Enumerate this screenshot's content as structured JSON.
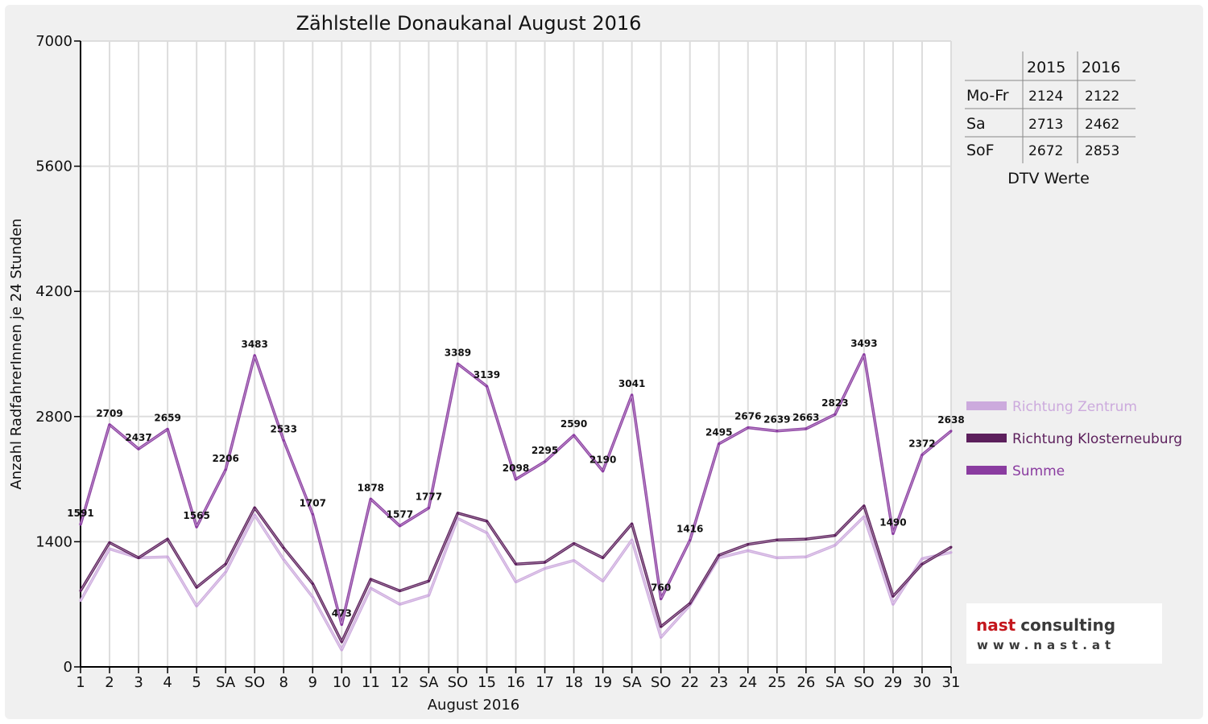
{
  "colors": {
    "zentrum": "#ccaadd",
    "kloster": "#5c1f5c",
    "summe": "#8a3ca0",
    "sunday": "#dd0000",
    "grid": "#dddddd"
  },
  "chart_data": {
    "type": "line",
    "title": "Zählstelle Donaukanal August 2016",
    "xlabel": "August 2016",
    "ylabel": "Anzahl RadfahrerInnen je 24 Stunden",
    "ylim": [
      0,
      7000
    ],
    "yticks": [
      "0",
      "1400",
      "2800",
      "4200",
      "5600",
      "7000"
    ],
    "ytick_values": [
      0,
      1400,
      2800,
      4200,
      5600,
      7000
    ],
    "categories": [
      "1",
      "2",
      "3",
      "4",
      "5",
      "SA",
      "SO",
      "8",
      "9",
      "10",
      "11",
      "12",
      "SA",
      "SO",
      "15",
      "16",
      "17",
      "18",
      "19",
      "SA",
      "SO",
      "22",
      "23",
      "24",
      "25",
      "26",
      "SA",
      "SO",
      "29",
      "30",
      "31"
    ],
    "red_categories": [
      6,
      13,
      14,
      20,
      27
    ],
    "grid": true,
    "legend_position": "right",
    "series": [
      {
        "name": "Richtung Zentrum",
        "color_key": "zentrum",
        "values": [
          740,
          1320,
          1220,
          1230,
          680,
          1060,
          1700,
          1200,
          780,
          190,
          880,
          700,
          800,
          1660,
          1500,
          950,
          1100,
          1190,
          960,
          1420,
          330,
          690,
          1220,
          1300,
          1220,
          1230,
          1360,
          1680,
          700,
          1210,
          1280
        ]
      },
      {
        "name": "Richtung Klosterneuburg",
        "color_key": "kloster",
        "values": [
          850,
          1390,
          1220,
          1430,
          890,
          1150,
          1780,
          1330,
          930,
          280,
          980,
          850,
          960,
          1720,
          1630,
          1150,
          1170,
          1380,
          1220,
          1600,
          450,
          710,
          1250,
          1370,
          1420,
          1430,
          1470,
          1800,
          790,
          1150,
          1340
        ]
      },
      {
        "name": "Summe",
        "color_key": "summe",
        "values": [
          1591,
          2709,
          2437,
          2659,
          1565,
          2206,
          3483,
          2533,
          1707,
          473,
          1878,
          1577,
          1777,
          3389,
          3139,
          2098,
          2295,
          2590,
          2190,
          3041,
          760,
          1416,
          2495,
          2676,
          2639,
          2663,
          2823,
          3493,
          1490,
          2372,
          2638
        ],
        "labels": [
          "1591",
          "2709",
          "2437",
          "2659",
          "1565",
          "2206",
          "3483",
          "2533",
          "1707",
          "473",
          "1878",
          "1577",
          "1777",
          "3389",
          "3139",
          "2098",
          "2295",
          "2590",
          "2190",
          "3041",
          "760",
          "1416",
          "2495",
          "2676",
          "2639",
          "2663",
          "2823",
          "3493",
          "1490",
          "2372",
          "2638"
        ]
      }
    ]
  },
  "dtv_table": {
    "caption": "DTV Werte",
    "headers": [
      "",
      "2015",
      "2016"
    ],
    "rows": [
      [
        "Mo-Fr",
        "2124",
        "2122"
      ],
      [
        "Sa",
        "2713",
        "2462"
      ],
      [
        "SoF",
        "2672",
        "2853"
      ]
    ]
  },
  "logo": {
    "name_part1": "nast",
    "name_part2": "consulting",
    "url": "www.nast.at"
  }
}
